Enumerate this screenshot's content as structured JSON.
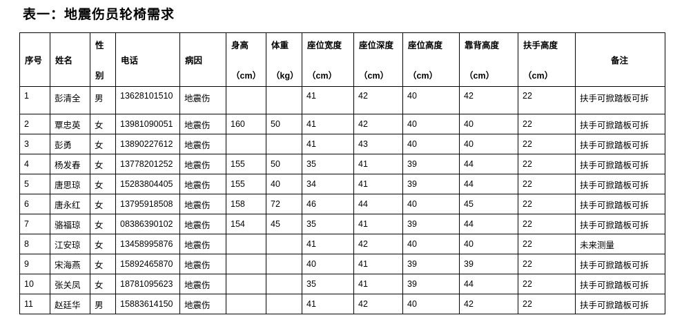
{
  "title": "表一：地震伤员轮椅需求",
  "table": {
    "columns": [
      {
        "key": "index",
        "lines": [
          "序号"
        ]
      },
      {
        "key": "name",
        "lines": [
          "姓名"
        ]
      },
      {
        "key": "gender",
        "lines": [
          "性",
          "别"
        ]
      },
      {
        "key": "phone",
        "lines": [
          "电话"
        ]
      },
      {
        "key": "cause",
        "lines": [
          "病因"
        ]
      },
      {
        "key": "height",
        "lines": [
          "身高",
          "（cm）"
        ]
      },
      {
        "key": "weight",
        "lines": [
          "体重",
          "（kg）"
        ]
      },
      {
        "key": "seat-width",
        "lines": [
          "座位宽度",
          "（cm）"
        ]
      },
      {
        "key": "seat-depth",
        "lines": [
          "座位深度",
          "（cm）"
        ]
      },
      {
        "key": "seat-height",
        "lines": [
          "座位高度",
          "（cm）"
        ]
      },
      {
        "key": "backrest-height",
        "lines": [
          "靠背高度",
          "（cm）"
        ]
      },
      {
        "key": "armrest-height",
        "lines": [
          "扶手高度",
          "（cm）"
        ]
      },
      {
        "key": "remark",
        "lines": [
          "备注"
        ]
      }
    ],
    "rows": [
      [
        "1",
        "彭清全",
        "男",
        "13628101510",
        "地震伤",
        "",
        "",
        "41",
        "42",
        "40",
        "42",
        "22",
        "扶手可掀踏板可拆"
      ],
      [
        "2",
        "覃忠英",
        "女",
        "13981090051",
        "地震伤",
        "160",
        "50",
        "41",
        "42",
        "40",
        "40",
        "22",
        "扶手可掀踏板可拆"
      ],
      [
        "3",
        "彭勇",
        "女",
        "13890227612",
        "地震伤",
        "",
        "",
        "41",
        "43",
        "40",
        "40",
        "22",
        "扶手可掀踏板可拆"
      ],
      [
        "4",
        "杨发春",
        "女",
        "13778201252",
        "地震伤",
        "155",
        "50",
        "35",
        "41",
        "39",
        "44",
        "22",
        "扶手可掀踏板可拆"
      ],
      [
        "5",
        "唐思琼",
        "女",
        "15283804405",
        "地震伤",
        "155",
        "40",
        "34",
        "41",
        "39",
        "44",
        "22",
        "扶手可掀踏板可拆"
      ],
      [
        "6",
        "唐永红",
        "女",
        "13795918508",
        "地震伤",
        "158",
        "72",
        "46",
        "44",
        "40",
        "45",
        "22",
        "扶手可掀踏板可拆"
      ],
      [
        "7",
        "骆福琼",
        "女",
        "08386390102",
        "地震伤",
        "154",
        "45",
        "35",
        "41",
        "39",
        "44",
        "22",
        "扶手可掀踏板可拆"
      ],
      [
        "8",
        "江安琼",
        "女",
        "13458995876",
        "地震伤",
        "",
        "",
        "41",
        "42",
        "40",
        "40",
        "22",
        "未来测量"
      ],
      [
        "9",
        "宋海燕",
        "女",
        "15892465870",
        "地震伤",
        "",
        "",
        "40",
        "41",
        "39",
        "39",
        "22",
        "扶手可掀踏板可拆"
      ],
      [
        "10",
        "张关凤",
        "女",
        "18781095623",
        "地震伤",
        "",
        "",
        "35",
        "41",
        "39",
        "44",
        "22",
        "扶手可掀踏板可拆"
      ],
      [
        "11",
        "赵廷华",
        "男",
        "15883614150",
        "地震伤",
        "",
        "",
        "41",
        "42",
        "40",
        "42",
        "22",
        "扶手可掀踏板可拆"
      ]
    ]
  }
}
